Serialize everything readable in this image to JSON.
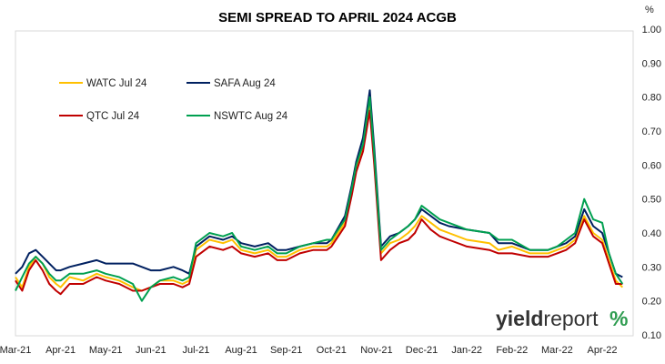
{
  "chart_data": {
    "type": "line",
    "title": "SEMI SPREAD TO APRIL 2024 ACGB",
    "y_unit": "%",
    "ylim": [
      0.1,
      1.0
    ],
    "y_ticks": [
      "0.10",
      "0.20",
      "0.30",
      "0.40",
      "0.50",
      "0.60",
      "0.70",
      "0.80",
      "0.90",
      "1.00"
    ],
    "x_tick_labels": [
      "Mar-21",
      "Apr-21",
      "May-21",
      "Jun-21",
      "Jul-21",
      "Aug-21",
      "Sep-21",
      "Oct-21",
      "Nov-21",
      "Dec-21",
      "Jan-22",
      "Feb-22",
      "Mar-22",
      "Apr-22"
    ],
    "grid": false,
    "legend_position": "top-left",
    "brand": {
      "text_bold": "yield",
      "text_regular": "report",
      "symbol": "%"
    },
    "colors": {
      "WATC": "#FFC000",
      "SAFA": "#002060",
      "QTC": "#C00000",
      "NSWTC": "#00A050",
      "brand_dark": "#333333",
      "brand_green": "#2E9C50",
      "brand_red": "#D02020"
    },
    "series": [
      {
        "name": "WATC Jul 24",
        "color": "#FFC000",
        "points": [
          [
            0.0,
            0.27
          ],
          [
            0.15,
            0.24
          ],
          [
            0.3,
            0.3
          ],
          [
            0.45,
            0.33
          ],
          [
            0.6,
            0.31
          ],
          [
            0.75,
            0.27
          ],
          [
            0.9,
            0.25
          ],
          [
            1.0,
            0.24
          ],
          [
            1.2,
            0.27
          ],
          [
            1.5,
            0.26
          ],
          [
            1.8,
            0.28
          ],
          [
            2.0,
            0.27
          ],
          [
            2.3,
            0.26
          ],
          [
            2.6,
            0.24
          ],
          [
            2.8,
            0.23
          ],
          [
            3.0,
            0.24
          ],
          [
            3.2,
            0.26
          ],
          [
            3.5,
            0.26
          ],
          [
            3.7,
            0.25
          ],
          [
            3.85,
            0.26
          ],
          [
            4.0,
            0.35
          ],
          [
            4.3,
            0.38
          ],
          [
            4.6,
            0.37
          ],
          [
            4.8,
            0.38
          ],
          [
            5.0,
            0.35
          ],
          [
            5.3,
            0.34
          ],
          [
            5.6,
            0.35
          ],
          [
            5.8,
            0.33
          ],
          [
            6.0,
            0.33
          ],
          [
            6.3,
            0.35
          ],
          [
            6.6,
            0.36
          ],
          [
            6.9,
            0.36
          ],
          [
            7.0,
            0.37
          ],
          [
            7.3,
            0.43
          ],
          [
            7.45,
            0.52
          ],
          [
            7.55,
            0.59
          ],
          [
            7.7,
            0.65
          ],
          [
            7.85,
            0.78
          ],
          [
            7.95,
            0.62
          ],
          [
            8.1,
            0.34
          ],
          [
            8.3,
            0.37
          ],
          [
            8.5,
            0.38
          ],
          [
            8.7,
            0.4
          ],
          [
            8.85,
            0.42
          ],
          [
            9.0,
            0.45
          ],
          [
            9.2,
            0.43
          ],
          [
            9.4,
            0.41
          ],
          [
            9.6,
            0.4
          ],
          [
            10.0,
            0.38
          ],
          [
            10.5,
            0.37
          ],
          [
            10.7,
            0.35
          ],
          [
            11.0,
            0.36
          ],
          [
            11.4,
            0.34
          ],
          [
            11.8,
            0.34
          ],
          [
            12.0,
            0.35
          ],
          [
            12.2,
            0.36
          ],
          [
            12.4,
            0.38
          ],
          [
            12.6,
            0.45
          ],
          [
            12.8,
            0.4
          ],
          [
            13.0,
            0.38
          ],
          [
            13.15,
            0.32
          ],
          [
            13.3,
            0.26
          ],
          [
            13.45,
            0.24
          ]
        ]
      },
      {
        "name": "SAFA Aug 24",
        "color": "#002060",
        "points": [
          [
            0.0,
            0.28
          ],
          [
            0.15,
            0.3
          ],
          [
            0.3,
            0.34
          ],
          [
            0.45,
            0.35
          ],
          [
            0.6,
            0.33
          ],
          [
            0.75,
            0.31
          ],
          [
            0.9,
            0.29
          ],
          [
            1.0,
            0.29
          ],
          [
            1.2,
            0.3
          ],
          [
            1.5,
            0.31
          ],
          [
            1.8,
            0.32
          ],
          [
            2.0,
            0.31
          ],
          [
            2.3,
            0.31
          ],
          [
            2.6,
            0.31
          ],
          [
            2.8,
            0.3
          ],
          [
            3.0,
            0.29
          ],
          [
            3.2,
            0.29
          ],
          [
            3.5,
            0.3
          ],
          [
            3.7,
            0.29
          ],
          [
            3.85,
            0.28
          ],
          [
            4.0,
            0.36
          ],
          [
            4.3,
            0.39
          ],
          [
            4.6,
            0.38
          ],
          [
            4.8,
            0.39
          ],
          [
            5.0,
            0.37
          ],
          [
            5.3,
            0.36
          ],
          [
            5.6,
            0.37
          ],
          [
            5.8,
            0.35
          ],
          [
            6.0,
            0.35
          ],
          [
            6.3,
            0.36
          ],
          [
            6.6,
            0.37
          ],
          [
            6.9,
            0.37
          ],
          [
            7.0,
            0.38
          ],
          [
            7.3,
            0.45
          ],
          [
            7.45,
            0.54
          ],
          [
            7.55,
            0.61
          ],
          [
            7.7,
            0.68
          ],
          [
            7.85,
            0.82
          ],
          [
            7.95,
            0.65
          ],
          [
            8.1,
            0.36
          ],
          [
            8.3,
            0.39
          ],
          [
            8.5,
            0.4
          ],
          [
            8.7,
            0.42
          ],
          [
            8.85,
            0.44
          ],
          [
            9.0,
            0.47
          ],
          [
            9.2,
            0.45
          ],
          [
            9.4,
            0.43
          ],
          [
            9.6,
            0.42
          ],
          [
            10.0,
            0.41
          ],
          [
            10.5,
            0.4
          ],
          [
            10.7,
            0.37
          ],
          [
            11.0,
            0.37
          ],
          [
            11.4,
            0.35
          ],
          [
            11.8,
            0.35
          ],
          [
            12.0,
            0.36
          ],
          [
            12.2,
            0.37
          ],
          [
            12.4,
            0.39
          ],
          [
            12.6,
            0.47
          ],
          [
            12.8,
            0.42
          ],
          [
            13.0,
            0.4
          ],
          [
            13.15,
            0.34
          ],
          [
            13.3,
            0.28
          ],
          [
            13.45,
            0.27
          ]
        ]
      },
      {
        "name": "QTC Jul 24",
        "color": "#C00000",
        "points": [
          [
            0.0,
            0.26
          ],
          [
            0.15,
            0.23
          ],
          [
            0.3,
            0.29
          ],
          [
            0.45,
            0.32
          ],
          [
            0.6,
            0.29
          ],
          [
            0.75,
            0.25
          ],
          [
            0.9,
            0.23
          ],
          [
            1.0,
            0.22
          ],
          [
            1.2,
            0.25
          ],
          [
            1.5,
            0.25
          ],
          [
            1.8,
            0.27
          ],
          [
            2.0,
            0.26
          ],
          [
            2.3,
            0.25
          ],
          [
            2.6,
            0.23
          ],
          [
            2.8,
            0.23
          ],
          [
            3.0,
            0.24
          ],
          [
            3.2,
            0.25
          ],
          [
            3.5,
            0.25
          ],
          [
            3.7,
            0.24
          ],
          [
            3.85,
            0.25
          ],
          [
            4.0,
            0.33
          ],
          [
            4.3,
            0.36
          ],
          [
            4.6,
            0.35
          ],
          [
            4.8,
            0.36
          ],
          [
            5.0,
            0.34
          ],
          [
            5.3,
            0.33
          ],
          [
            5.6,
            0.34
          ],
          [
            5.8,
            0.32
          ],
          [
            6.0,
            0.32
          ],
          [
            6.3,
            0.34
          ],
          [
            6.6,
            0.35
          ],
          [
            6.9,
            0.35
          ],
          [
            7.0,
            0.36
          ],
          [
            7.3,
            0.42
          ],
          [
            7.45,
            0.51
          ],
          [
            7.55,
            0.58
          ],
          [
            7.7,
            0.64
          ],
          [
            7.85,
            0.76
          ],
          [
            7.95,
            0.6
          ],
          [
            8.1,
            0.32
          ],
          [
            8.3,
            0.35
          ],
          [
            8.5,
            0.37
          ],
          [
            8.7,
            0.38
          ],
          [
            8.85,
            0.4
          ],
          [
            9.0,
            0.44
          ],
          [
            9.2,
            0.41
          ],
          [
            9.4,
            0.39
          ],
          [
            9.6,
            0.38
          ],
          [
            10.0,
            0.36
          ],
          [
            10.5,
            0.35
          ],
          [
            10.7,
            0.34
          ],
          [
            11.0,
            0.34
          ],
          [
            11.4,
            0.33
          ],
          [
            11.8,
            0.33
          ],
          [
            12.0,
            0.34
          ],
          [
            12.2,
            0.35
          ],
          [
            12.4,
            0.37
          ],
          [
            12.6,
            0.44
          ],
          [
            12.8,
            0.39
          ],
          [
            13.0,
            0.37
          ],
          [
            13.15,
            0.31
          ],
          [
            13.3,
            0.25
          ],
          [
            13.45,
            0.25
          ]
        ]
      },
      {
        "name": "NSWTC Aug 24",
        "color": "#00A050",
        "points": [
          [
            0.0,
            0.23
          ],
          [
            0.15,
            0.27
          ],
          [
            0.3,
            0.31
          ],
          [
            0.45,
            0.33
          ],
          [
            0.6,
            0.31
          ],
          [
            0.75,
            0.28
          ],
          [
            0.9,
            0.26
          ],
          [
            1.0,
            0.26
          ],
          [
            1.2,
            0.28
          ],
          [
            1.5,
            0.28
          ],
          [
            1.8,
            0.29
          ],
          [
            2.0,
            0.28
          ],
          [
            2.3,
            0.27
          ],
          [
            2.6,
            0.25
          ],
          [
            2.8,
            0.2
          ],
          [
            3.0,
            0.24
          ],
          [
            3.2,
            0.26
          ],
          [
            3.5,
            0.27
          ],
          [
            3.7,
            0.26
          ],
          [
            3.85,
            0.27
          ],
          [
            4.0,
            0.37
          ],
          [
            4.3,
            0.4
          ],
          [
            4.6,
            0.39
          ],
          [
            4.8,
            0.4
          ],
          [
            5.0,
            0.36
          ],
          [
            5.3,
            0.35
          ],
          [
            5.6,
            0.36
          ],
          [
            5.8,
            0.34
          ],
          [
            6.0,
            0.34
          ],
          [
            6.3,
            0.36
          ],
          [
            6.6,
            0.37
          ],
          [
            6.9,
            0.38
          ],
          [
            7.0,
            0.38
          ],
          [
            7.3,
            0.44
          ],
          [
            7.45,
            0.53
          ],
          [
            7.55,
            0.6
          ],
          [
            7.7,
            0.66
          ],
          [
            7.85,
            0.8
          ],
          [
            7.95,
            0.63
          ],
          [
            8.1,
            0.35
          ],
          [
            8.3,
            0.38
          ],
          [
            8.5,
            0.4
          ],
          [
            8.7,
            0.42
          ],
          [
            8.85,
            0.44
          ],
          [
            9.0,
            0.48
          ],
          [
            9.2,
            0.46
          ],
          [
            9.4,
            0.44
          ],
          [
            9.6,
            0.43
          ],
          [
            10.0,
            0.41
          ],
          [
            10.5,
            0.4
          ],
          [
            10.7,
            0.38
          ],
          [
            11.0,
            0.38
          ],
          [
            11.4,
            0.35
          ],
          [
            11.8,
            0.35
          ],
          [
            12.0,
            0.36
          ],
          [
            12.2,
            0.38
          ],
          [
            12.4,
            0.4
          ],
          [
            12.6,
            0.5
          ],
          [
            12.8,
            0.44
          ],
          [
            13.0,
            0.43
          ],
          [
            13.15,
            0.34
          ],
          [
            13.3,
            0.28
          ],
          [
            13.45,
            0.25
          ]
        ]
      }
    ]
  }
}
